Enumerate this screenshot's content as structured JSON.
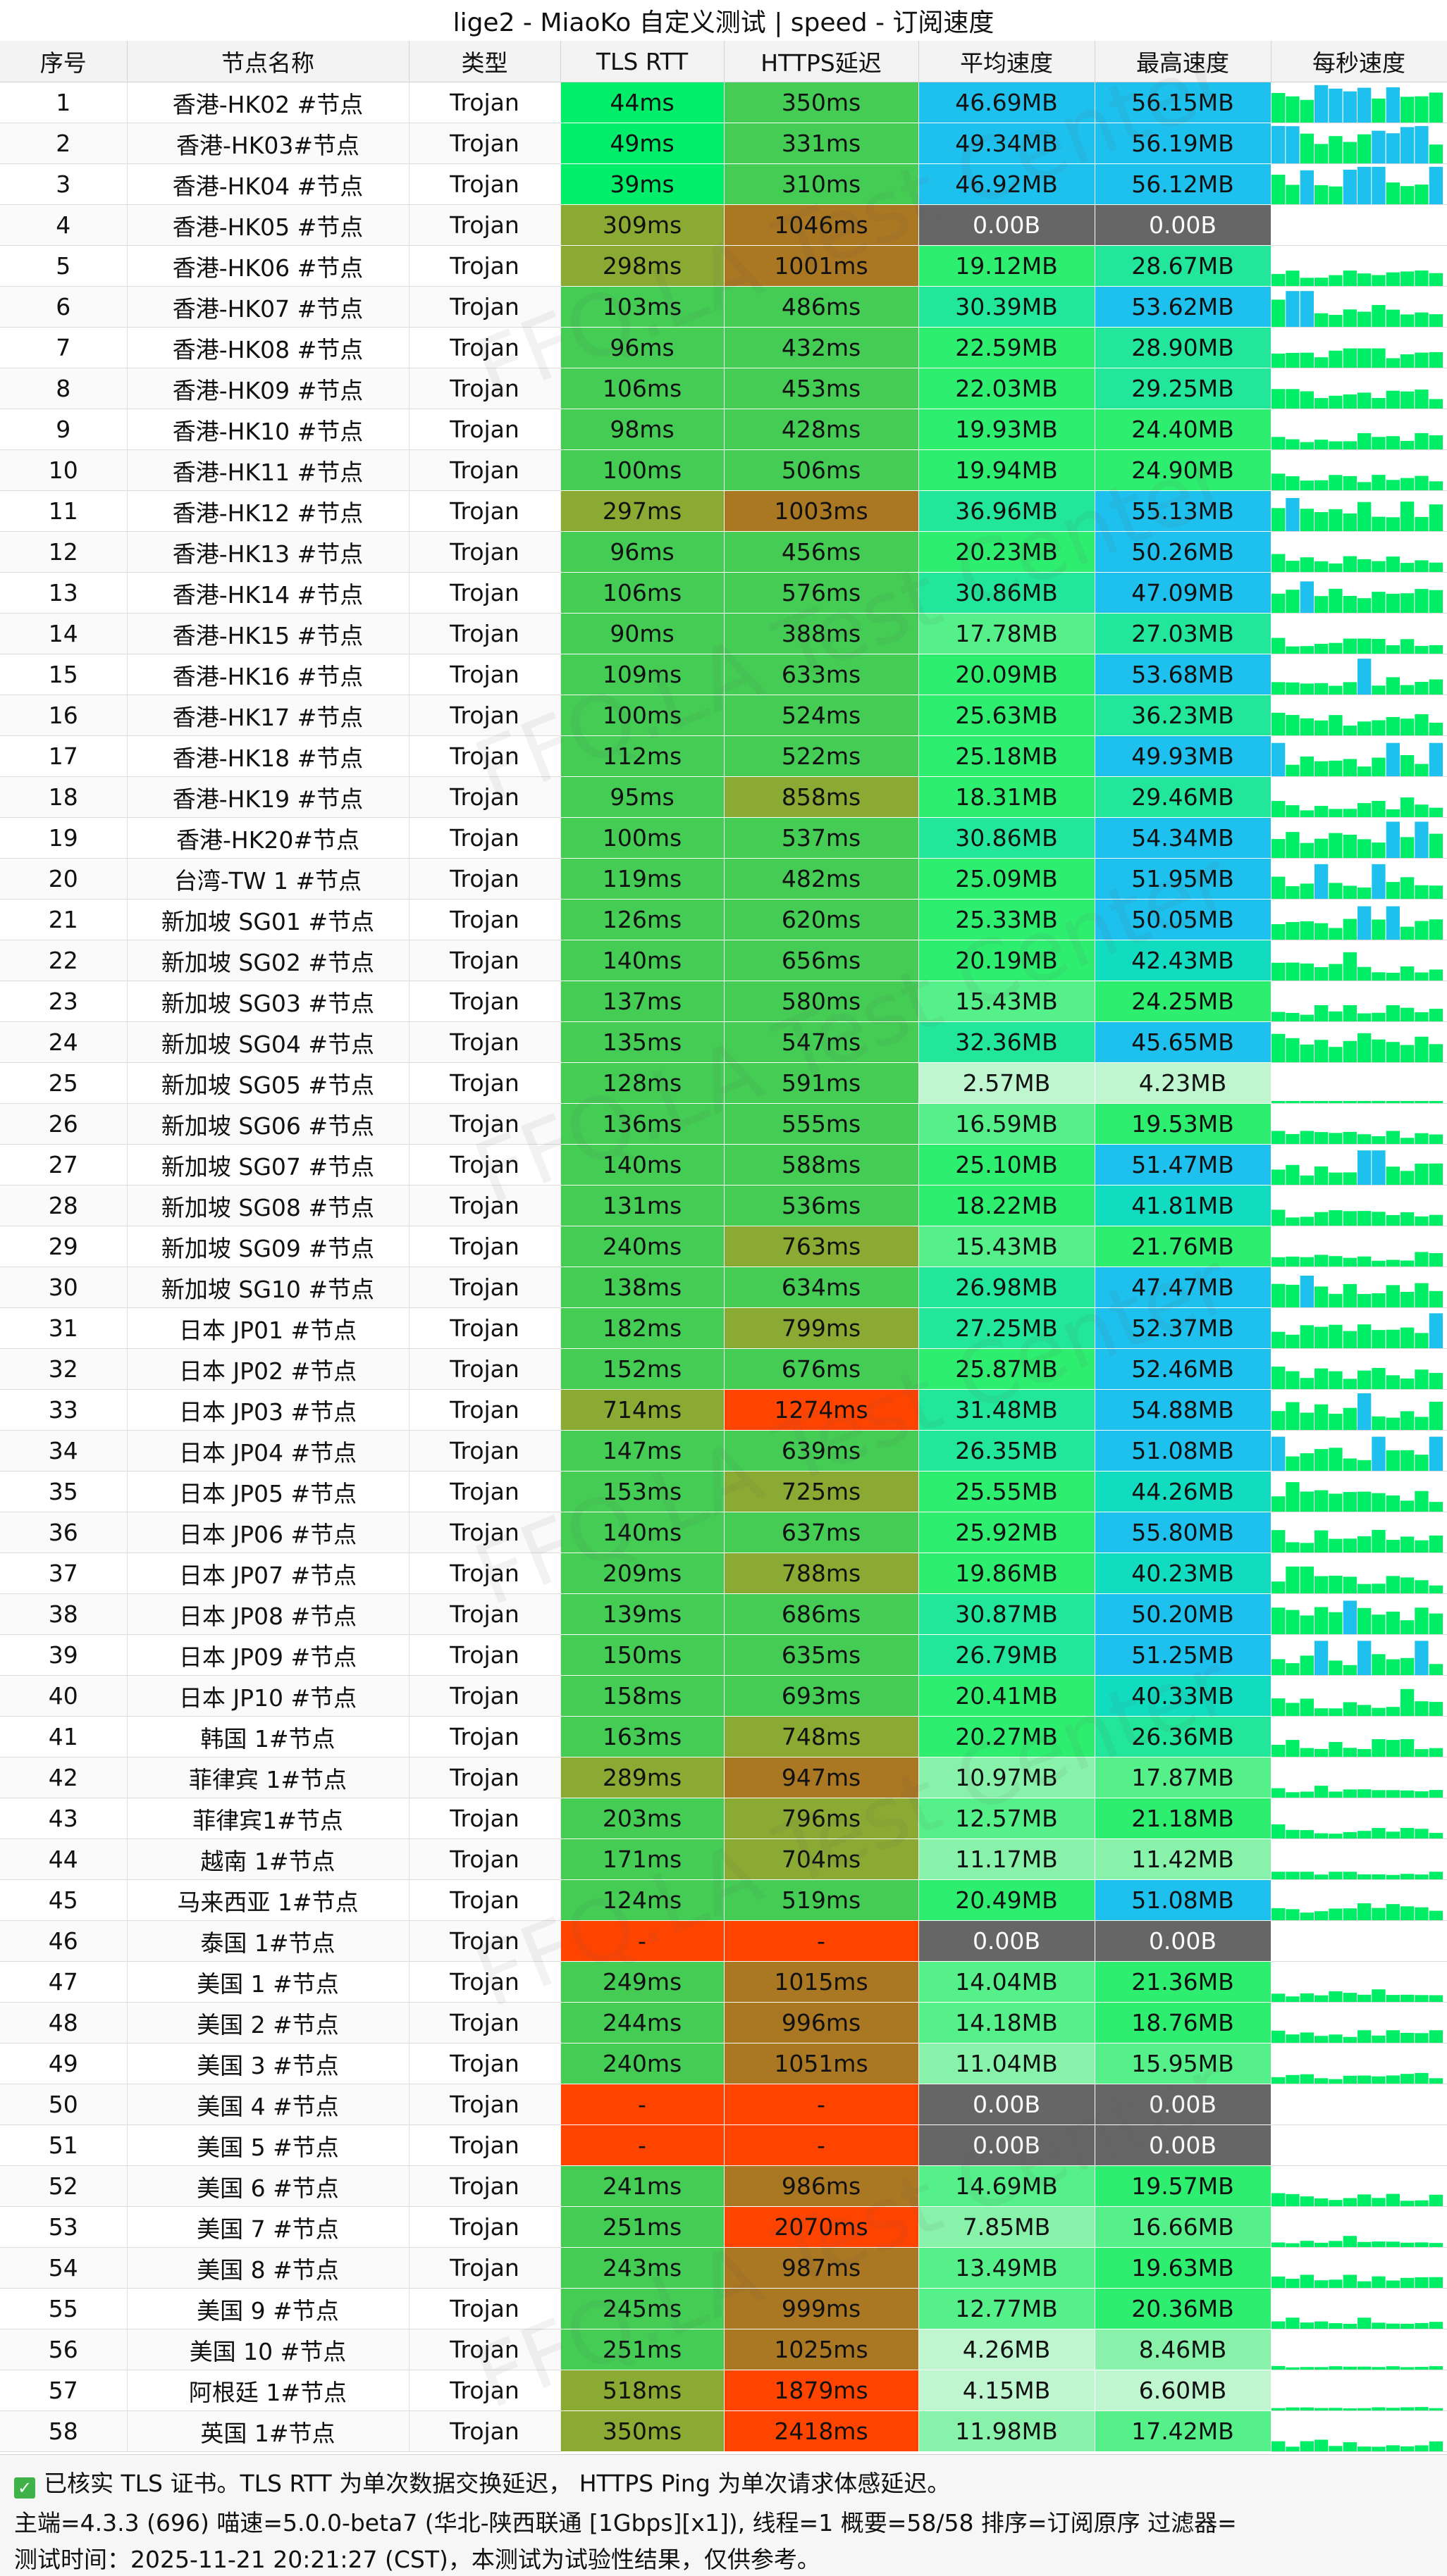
{
  "title": "lige2 - MiaoKo 自定义测试 | speed - 订阅速度",
  "watermark": "FFQ.LA Test Center",
  "colors": {
    "fast": "#00ee6a",
    "good": "#44cc55",
    "mid": "#8aaa33",
    "slow": "#aa7722",
    "bad": "#ff4400",
    "none": "#666666",
    "sparkline": "#00ee66",
    "sparkline_high": "#1ec0ee"
  },
  "footer": {
    "check_icon": "check-square-icon",
    "line1": "已核实 TLS 证书。TLS RTT 为单次数据交换延迟， HTTPS Ping 为单次请求体感延迟。",
    "line2": "主端=4.3.3 (696) 喵速=5.0.0-beta7 (华北-陕西联通 [1Gbps][x1]), 线程=1 概要=58/58 排序=订阅原序 过滤器=",
    "line3": "测试时间：2025-11-21 20:21:27 (CST)，本测试为试验性结果，仅供参考。"
  },
  "chart_data": {
    "type": "table",
    "title": "lige2 - MiaoKo 自定义测试 | speed - 订阅速度",
    "columns": [
      "序号",
      "节点名称",
      "类型",
      "TLS RTT",
      "HTTPS延迟",
      "平均速度",
      "最高速度",
      "每秒速度"
    ],
    "rows": [
      {
        "id": "1",
        "name": "香港-HK02 #节点",
        "type": "Trojan",
        "rtt": "44ms",
        "https": "350ms",
        "avg": "46.69MB",
        "max": "56.15MB"
      },
      {
        "id": "2",
        "name": "香港-HK03#节点",
        "type": "Trojan",
        "rtt": "49ms",
        "https": "331ms",
        "avg": "49.34MB",
        "max": "56.19MB"
      },
      {
        "id": "3",
        "name": "香港-HK04 #节点",
        "type": "Trojan",
        "rtt": "39ms",
        "https": "310ms",
        "avg": "46.92MB",
        "max": "56.12MB"
      },
      {
        "id": "4",
        "name": "香港-HK05 #节点",
        "type": "Trojan",
        "rtt": "309ms",
        "https": "1046ms",
        "avg": "0.00B",
        "max": "0.00B"
      },
      {
        "id": "5",
        "name": "香港-HK06 #节点",
        "type": "Trojan",
        "rtt": "298ms",
        "https": "1001ms",
        "avg": "19.12MB",
        "max": "28.67MB"
      },
      {
        "id": "6",
        "name": "香港-HK07 #节点",
        "type": "Trojan",
        "rtt": "103ms",
        "https": "486ms",
        "avg": "30.39MB",
        "max": "53.62MB"
      },
      {
        "id": "7",
        "name": "香港-HK08 #节点",
        "type": "Trojan",
        "rtt": "96ms",
        "https": "432ms",
        "avg": "22.59MB",
        "max": "28.90MB"
      },
      {
        "id": "8",
        "name": "香港-HK09 #节点",
        "type": "Trojan",
        "rtt": "106ms",
        "https": "453ms",
        "avg": "22.03MB",
        "max": "29.25MB"
      },
      {
        "id": "9",
        "name": "香港-HK10 #节点",
        "type": "Trojan",
        "rtt": "98ms",
        "https": "428ms",
        "avg": "19.93MB",
        "max": "24.40MB"
      },
      {
        "id": "10",
        "name": "香港-HK11 #节点",
        "type": "Trojan",
        "rtt": "100ms",
        "https": "506ms",
        "avg": "19.94MB",
        "max": "24.90MB"
      },
      {
        "id": "11",
        "name": "香港-HK12 #节点",
        "type": "Trojan",
        "rtt": "297ms",
        "https": "1003ms",
        "avg": "36.96MB",
        "max": "55.13MB"
      },
      {
        "id": "12",
        "name": "香港-HK13 #节点",
        "type": "Trojan",
        "rtt": "96ms",
        "https": "456ms",
        "avg": "20.23MB",
        "max": "50.26MB"
      },
      {
        "id": "13",
        "name": "香港-HK14 #节点",
        "type": "Trojan",
        "rtt": "106ms",
        "https": "576ms",
        "avg": "30.86MB",
        "max": "47.09MB"
      },
      {
        "id": "14",
        "name": "香港-HK15 #节点",
        "type": "Trojan",
        "rtt": "90ms",
        "https": "388ms",
        "avg": "17.78MB",
        "max": "27.03MB"
      },
      {
        "id": "15",
        "name": "香港-HK16 #节点",
        "type": "Trojan",
        "rtt": "109ms",
        "https": "633ms",
        "avg": "20.09MB",
        "max": "53.68MB"
      },
      {
        "id": "16",
        "name": "香港-HK17 #节点",
        "type": "Trojan",
        "rtt": "100ms",
        "https": "524ms",
        "avg": "25.63MB",
        "max": "36.23MB"
      },
      {
        "id": "17",
        "name": "香港-HK18 #节点",
        "type": "Trojan",
        "rtt": "112ms",
        "https": "522ms",
        "avg": "25.18MB",
        "max": "49.93MB"
      },
      {
        "id": "18",
        "name": "香港-HK19 #节点",
        "type": "Trojan",
        "rtt": "95ms",
        "https": "858ms",
        "avg": "18.31MB",
        "max": "29.46MB"
      },
      {
        "id": "19",
        "name": "香港-HK20#节点",
        "type": "Trojan",
        "rtt": "100ms",
        "https": "537ms",
        "avg": "30.86MB",
        "max": "54.34MB"
      },
      {
        "id": "20",
        "name": "台湾-TW 1 #节点",
        "type": "Trojan",
        "rtt": "119ms",
        "https": "482ms",
        "avg": "25.09MB",
        "max": "51.95MB"
      },
      {
        "id": "21",
        "name": "新加坡 SG01 #节点",
        "type": "Trojan",
        "rtt": "126ms",
        "https": "620ms",
        "avg": "25.33MB",
        "max": "50.05MB"
      },
      {
        "id": "22",
        "name": "新加坡 SG02 #节点",
        "type": "Trojan",
        "rtt": "140ms",
        "https": "656ms",
        "avg": "20.19MB",
        "max": "42.43MB"
      },
      {
        "id": "23",
        "name": "新加坡 SG03 #节点",
        "type": "Trojan",
        "rtt": "137ms",
        "https": "580ms",
        "avg": "15.43MB",
        "max": "24.25MB"
      },
      {
        "id": "24",
        "name": "新加坡 SG04 #节点",
        "type": "Trojan",
        "rtt": "135ms",
        "https": "547ms",
        "avg": "32.36MB",
        "max": "45.65MB"
      },
      {
        "id": "25",
        "name": "新加坡 SG05 #节点",
        "type": "Trojan",
        "rtt": "128ms",
        "https": "591ms",
        "avg": "2.57MB",
        "max": "4.23MB"
      },
      {
        "id": "26",
        "name": "新加坡 SG06 #节点",
        "type": "Trojan",
        "rtt": "136ms",
        "https": "555ms",
        "avg": "16.59MB",
        "max": "19.53MB"
      },
      {
        "id": "27",
        "name": "新加坡 SG07 #节点",
        "type": "Trojan",
        "rtt": "140ms",
        "https": "588ms",
        "avg": "25.10MB",
        "max": "51.47MB"
      },
      {
        "id": "28",
        "name": "新加坡 SG08 #节点",
        "type": "Trojan",
        "rtt": "131ms",
        "https": "536ms",
        "avg": "18.22MB",
        "max": "41.81MB"
      },
      {
        "id": "29",
        "name": "新加坡 SG09 #节点",
        "type": "Trojan",
        "rtt": "240ms",
        "https": "763ms",
        "avg": "15.43MB",
        "max": "21.76MB"
      },
      {
        "id": "30",
        "name": "新加坡 SG10 #节点",
        "type": "Trojan",
        "rtt": "138ms",
        "https": "634ms",
        "avg": "26.98MB",
        "max": "47.47MB"
      },
      {
        "id": "31",
        "name": "日本 JP01 #节点",
        "type": "Trojan",
        "rtt": "182ms",
        "https": "799ms",
        "avg": "27.25MB",
        "max": "52.37MB"
      },
      {
        "id": "32",
        "name": "日本 JP02 #节点",
        "type": "Trojan",
        "rtt": "152ms",
        "https": "676ms",
        "avg": "25.87MB",
        "max": "52.46MB"
      },
      {
        "id": "33",
        "name": "日本 JP03 #节点",
        "type": "Trojan",
        "rtt": "714ms",
        "https": "1274ms",
        "avg": "31.48MB",
        "max": "54.88MB"
      },
      {
        "id": "34",
        "name": "日本 JP04 #节点",
        "type": "Trojan",
        "rtt": "147ms",
        "https": "639ms",
        "avg": "26.35MB",
        "max": "51.08MB"
      },
      {
        "id": "35",
        "name": "日本 JP05 #节点",
        "type": "Trojan",
        "rtt": "153ms",
        "https": "725ms",
        "avg": "25.55MB",
        "max": "44.26MB"
      },
      {
        "id": "36",
        "name": "日本 JP06 #节点",
        "type": "Trojan",
        "rtt": "140ms",
        "https": "637ms",
        "avg": "25.92MB",
        "max": "55.80MB"
      },
      {
        "id": "37",
        "name": "日本 JP07 #节点",
        "type": "Trojan",
        "rtt": "209ms",
        "https": "788ms",
        "avg": "19.86MB",
        "max": "40.23MB"
      },
      {
        "id": "38",
        "name": "日本 JP08 #节点",
        "type": "Trojan",
        "rtt": "139ms",
        "https": "686ms",
        "avg": "30.87MB",
        "max": "50.20MB"
      },
      {
        "id": "39",
        "name": "日本 JP09 #节点",
        "type": "Trojan",
        "rtt": "150ms",
        "https": "635ms",
        "avg": "26.79MB",
        "max": "51.25MB"
      },
      {
        "id": "40",
        "name": "日本 JP10 #节点",
        "type": "Trojan",
        "rtt": "158ms",
        "https": "693ms",
        "avg": "20.41MB",
        "max": "40.33MB"
      },
      {
        "id": "41",
        "name": "韩国 1#节点",
        "type": "Trojan",
        "rtt": "163ms",
        "https": "748ms",
        "avg": "20.27MB",
        "max": "26.36MB"
      },
      {
        "id": "42",
        "name": "菲律宾 1#节点",
        "type": "Trojan",
        "rtt": "289ms",
        "https": "947ms",
        "avg": "10.97MB",
        "max": "17.87MB"
      },
      {
        "id": "43",
        "name": "菲律宾1#节点",
        "type": "Trojan",
        "rtt": "203ms",
        "https": "796ms",
        "avg": "12.57MB",
        "max": "21.18MB"
      },
      {
        "id": "44",
        "name": "越南 1#节点",
        "type": "Trojan",
        "rtt": "171ms",
        "https": "704ms",
        "avg": "11.17MB",
        "max": "11.42MB"
      },
      {
        "id": "45",
        "name": "马来西亚 1#节点",
        "type": "Trojan",
        "rtt": "124ms",
        "https": "519ms",
        "avg": "20.49MB",
        "max": "51.08MB"
      },
      {
        "id": "46",
        "name": "泰国 1#节点",
        "type": "Trojan",
        "rtt": "-",
        "https": "-",
        "avg": "0.00B",
        "max": "0.00B"
      },
      {
        "id": "47",
        "name": "美国 1 #节点",
        "type": "Trojan",
        "rtt": "249ms",
        "https": "1015ms",
        "avg": "14.04MB",
        "max": "21.36MB"
      },
      {
        "id": "48",
        "name": "美国 2 #节点",
        "type": "Trojan",
        "rtt": "244ms",
        "https": "996ms",
        "avg": "14.18MB",
        "max": "18.76MB"
      },
      {
        "id": "49",
        "name": "美国 3 #节点",
        "type": "Trojan",
        "rtt": "240ms",
        "https": "1051ms",
        "avg": "11.04MB",
        "max": "15.95MB"
      },
      {
        "id": "50",
        "name": "美国 4 #节点",
        "type": "Trojan",
        "rtt": "-",
        "https": "-",
        "avg": "0.00B",
        "max": "0.00B"
      },
      {
        "id": "51",
        "name": "美国 5 #节点",
        "type": "Trojan",
        "rtt": "-",
        "https": "-",
        "avg": "0.00B",
        "max": "0.00B"
      },
      {
        "id": "52",
        "name": "美国 6 #节点",
        "type": "Trojan",
        "rtt": "241ms",
        "https": "986ms",
        "avg": "14.69MB",
        "max": "19.57MB"
      },
      {
        "id": "53",
        "name": "美国 7 #节点",
        "type": "Trojan",
        "rtt": "251ms",
        "https": "2070ms",
        "avg": "7.85MB",
        "max": "16.66MB"
      },
      {
        "id": "54",
        "name": "美国 8 #节点",
        "type": "Trojan",
        "rtt": "243ms",
        "https": "987ms",
        "avg": "13.49MB",
        "max": "19.63MB"
      },
      {
        "id": "55",
        "name": "美国 9 #节点",
        "type": "Trojan",
        "rtt": "245ms",
        "https": "999ms",
        "avg": "12.77MB",
        "max": "20.36MB"
      },
      {
        "id": "56",
        "name": "美国 10 #节点",
        "type": "Trojan",
        "rtt": "251ms",
        "https": "1025ms",
        "avg": "4.26MB",
        "max": "8.46MB"
      },
      {
        "id": "57",
        "name": "阿根廷 1#节点",
        "type": "Trojan",
        "rtt": "518ms",
        "https": "1879ms",
        "avg": "4.15MB",
        "max": "6.60MB"
      },
      {
        "id": "58",
        "name": "英国 1#节点",
        "type": "Trojan",
        "rtt": "350ms",
        "https": "2418ms",
        "avg": "11.98MB",
        "max": "17.42MB"
      }
    ]
  }
}
